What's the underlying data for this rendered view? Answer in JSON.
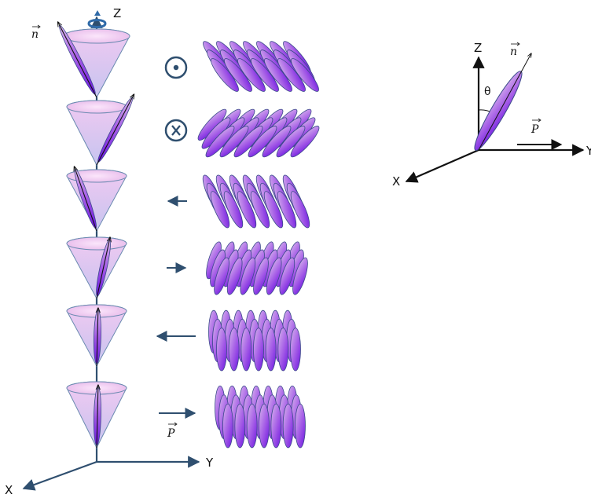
{
  "left_diagram": {
    "axis_z_label": "Z",
    "axis_y_label": "Y",
    "axis_x_label": "X",
    "director_label": "n",
    "polarization_label": "P",
    "layers": [
      {
        "director_tilt": "left-front",
        "polarization_symbol": "dot-in-circle"
      },
      {
        "director_tilt": "right-back",
        "polarization_symbol": "x-in-circle"
      },
      {
        "director_tilt": "left",
        "polarization_symbol": "arrow-left"
      },
      {
        "director_tilt": "right",
        "polarization_symbol": "arrow-right"
      },
      {
        "director_tilt": "vertical",
        "polarization_symbol": "arrow-left"
      },
      {
        "director_tilt": "vertical",
        "polarization_symbol": "arrow-right"
      }
    ]
  },
  "right_diagram": {
    "axis_z_label": "Z",
    "axis_y_label": "Y",
    "axis_x_label": "X",
    "director_label": "n",
    "angle_label": "θ",
    "polarization_label": "P"
  },
  "colors": {
    "axis": "#2f4f6f",
    "cone_top": "#efc8ef",
    "cone_bottom": "#c9c3f0",
    "molecule_light": "#c79ae6",
    "molecule_dark": "#7d23e8",
    "molecule_stroke": "#3b4a8a"
  }
}
